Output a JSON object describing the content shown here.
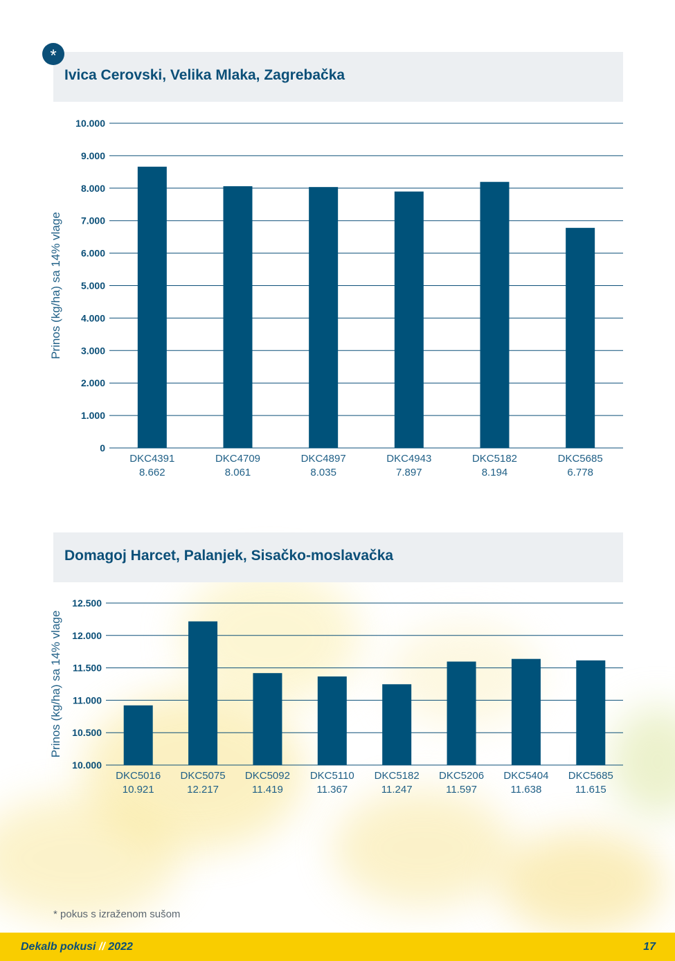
{
  "star_symbol": "*",
  "charts_meta": [
    {
      "title": "Ivica Cerovski, Velika Mlaka, Zagrebačka"
    },
    {
      "title": "Domagoj Harcet, Palanjek, Sisačko-moslavačka"
    }
  ],
  "chart_data": [
    {
      "type": "bar",
      "title": "Ivica Cerovski, Velika Mlaka, Zagrebačka",
      "ylabel": "Prinos (kg/ha) sa 14% vlage",
      "xlabel": "",
      "ylim": [
        0,
        10000
      ],
      "yticks": [
        0,
        1000,
        2000,
        3000,
        4000,
        5000,
        6000,
        7000,
        8000,
        9000,
        10000
      ],
      "ytick_labels": [
        "0",
        "1.000",
        "2.000",
        "3.000",
        "4.000",
        "5.000",
        "6.000",
        "7.000",
        "8.000",
        "9.000",
        "10.000"
      ],
      "categories": [
        "DKC4391",
        "DKC4709",
        "DKC4897",
        "DKC4943",
        "DKC5182",
        "DKC5685"
      ],
      "value_labels": [
        "8.662",
        "8.061",
        "8.035",
        "7.897",
        "8.194",
        "6.778"
      ],
      "values": [
        8662,
        8061,
        8035,
        7897,
        8194,
        6778
      ],
      "bar_color": "#00527a",
      "grid_color": "#0b4f78",
      "grid": true
    },
    {
      "type": "bar",
      "title": "Domagoj Harcet, Palanjek, Sisačko-moslavačka",
      "ylabel": "Prinos (kg/ha) sa 14% vlage",
      "xlabel": "",
      "ylim": [
        10000,
        12500
      ],
      "yticks": [
        10000,
        10500,
        11000,
        11500,
        12000,
        12500
      ],
      "ytick_labels": [
        "10.000",
        "10.500",
        "11.000",
        "11.500",
        "12.000",
        "12.500"
      ],
      "categories": [
        "DKC5016",
        "DKC5075",
        "DKC5092",
        "DKC5110",
        "DKC5182",
        "DKC5206",
        "DKC5404",
        "DKC5685"
      ],
      "value_labels": [
        "10.921",
        "12.217",
        "11.419",
        "11.367",
        "11.247",
        "11.597",
        "11.638",
        "11.615"
      ],
      "values": [
        10921,
        12217,
        11419,
        11367,
        11247,
        11597,
        11638,
        11615
      ],
      "bar_color": "#00527a",
      "grid_color": "#0b4f78",
      "grid": true
    }
  ],
  "footnote": "* pokus s izraženom sušom",
  "footer": {
    "brand": "Dekalb pokusi",
    "separator": "//",
    "year": "2022",
    "page_number": "17"
  }
}
